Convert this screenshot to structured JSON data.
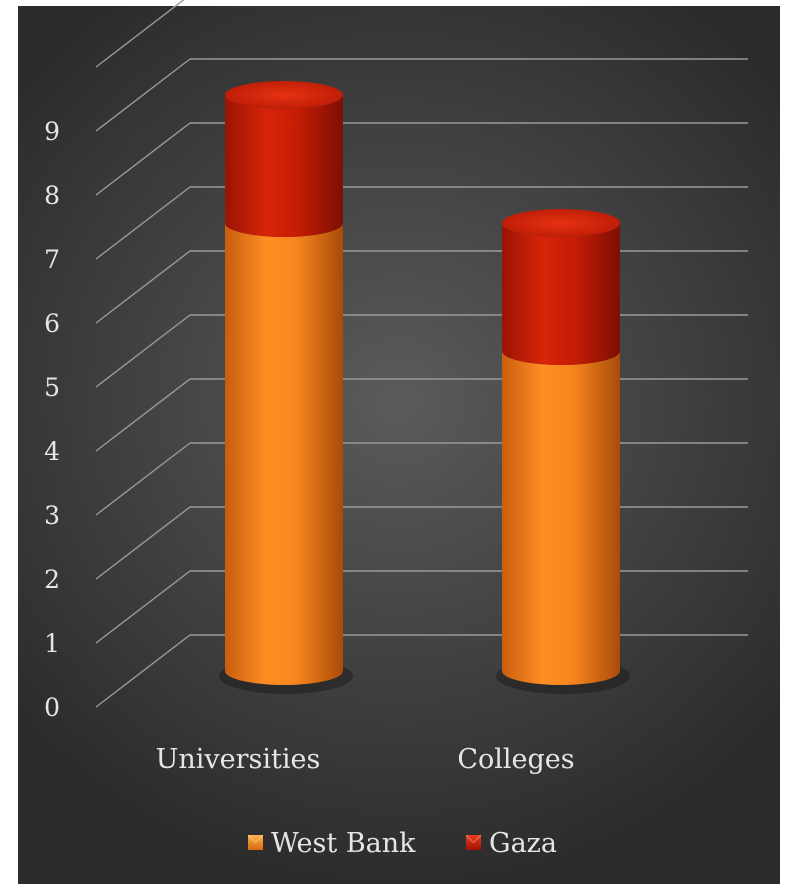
{
  "chart_data": {
    "type": "bar",
    "subtype": "stacked-3d-cylinder",
    "categories": [
      "Universities",
      "Colleges"
    ],
    "series": [
      {
        "name": "West Bank",
        "values": [
          7,
          5
        ],
        "color": "#f5821a"
      },
      {
        "name": "Gaza",
        "values": [
          2,
          2
        ],
        "color": "#c01a05"
      }
    ],
    "ylim": [
      0,
      9
    ],
    "yticks": [
      0,
      1,
      2,
      3,
      4,
      5,
      6,
      7,
      8,
      9
    ],
    "grid": true,
    "legend_position": "bottom",
    "background": "#3f3f3f"
  }
}
